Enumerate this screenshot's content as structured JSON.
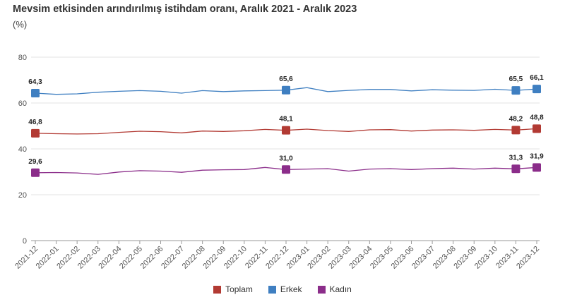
{
  "chart_data": {
    "type": "line",
    "title": "Mevsim etkisinden arındırılmış istihdam oranı, Aralık 2021 - Aralık 2023",
    "subtitle": "(%)",
    "ylim": [
      0,
      80
    ],
    "yticks": [
      "0",
      "20",
      "40",
      "60",
      "80"
    ],
    "grid": true,
    "legend_position": "bottom",
    "x": [
      "2021-12",
      "2022-01",
      "2022-02",
      "2022-03",
      "2022-04",
      "2022-05",
      "2022-06",
      "2022-07",
      "2022-08",
      "2022-09",
      "2022-10",
      "2022-11",
      "2022-12",
      "2023-01",
      "2023-02",
      "2023-03",
      "2023-04",
      "2023-05",
      "2023-06",
      "2023-07",
      "2023-08",
      "2023-09",
      "2023-10",
      "2023-11",
      "2023-12"
    ],
    "series": [
      {
        "name": "Toplam",
        "color": "#b23a33",
        "values": [
          46.8,
          46.6,
          46.5,
          46.6,
          47.2,
          47.7,
          47.5,
          47.0,
          47.8,
          47.6,
          47.9,
          48.5,
          48.1,
          48.6,
          48.0,
          47.6,
          48.3,
          48.4,
          47.8,
          48.2,
          48.3,
          48.1,
          48.5,
          48.2,
          48.8
        ],
        "labels": [
          {
            "index": 0,
            "text": "46,8"
          },
          {
            "index": 12,
            "text": "48,1"
          },
          {
            "index": 23,
            "text": "48,2"
          },
          {
            "index": 24,
            "text": "48,8"
          }
        ]
      },
      {
        "name": "Erkek",
        "color": "#3f7fc1",
        "values": [
          64.3,
          63.8,
          64.0,
          64.7,
          65.1,
          65.4,
          65.1,
          64.3,
          65.4,
          65.0,
          65.3,
          65.4,
          65.6,
          66.7,
          65.0,
          65.5,
          65.9,
          65.9,
          65.3,
          65.8,
          65.6,
          65.5,
          66.0,
          65.5,
          66.1
        ],
        "labels": [
          {
            "index": 0,
            "text": "64,3"
          },
          {
            "index": 12,
            "text": "65,6"
          },
          {
            "index": 23,
            "text": "65,5"
          },
          {
            "index": 24,
            "text": "66,1"
          }
        ]
      },
      {
        "name": "Kadın",
        "color": "#8b2d8a",
        "values": [
          29.6,
          29.7,
          29.5,
          28.9,
          29.9,
          30.5,
          30.3,
          29.8,
          30.7,
          30.9,
          31.0,
          31.9,
          31.0,
          31.2,
          31.4,
          30.3,
          31.2,
          31.4,
          31.0,
          31.4,
          31.6,
          31.2,
          31.6,
          31.3,
          31.9
        ],
        "labels": [
          {
            "index": 0,
            "text": "29,6"
          },
          {
            "index": 12,
            "text": "31,0"
          },
          {
            "index": 23,
            "text": "31,3"
          },
          {
            "index": 24,
            "text": "31,9"
          }
        ]
      }
    ]
  }
}
